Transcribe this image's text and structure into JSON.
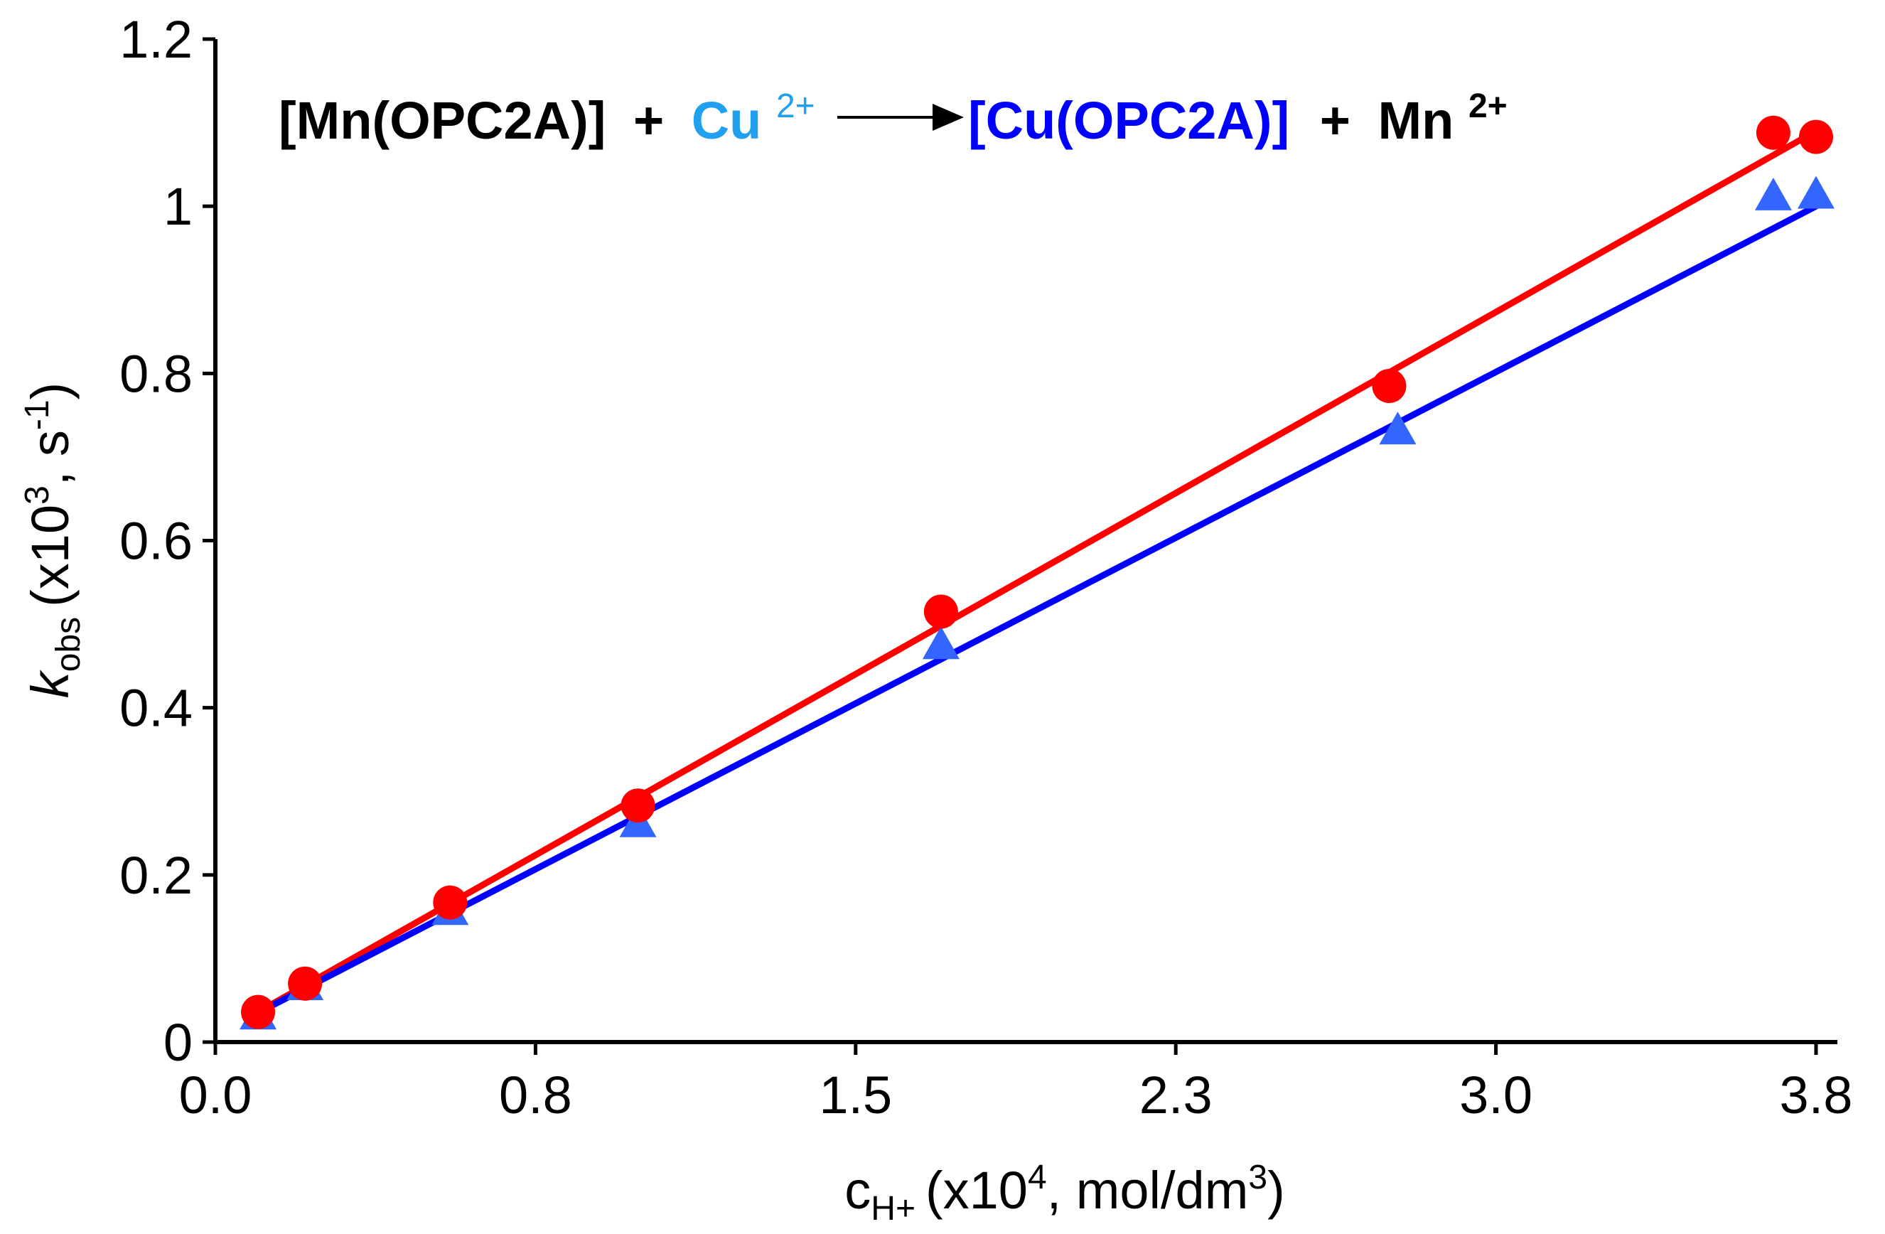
{
  "chart_data": {
    "type": "scatter",
    "title": "",
    "equation": {
      "reactant": "[Mn(OPC2A)]",
      "plus_1": "+",
      "ion_in": "Cu",
      "ion_in_charge": "2+",
      "product": "[Cu(OPC2A)]",
      "plus_2": "+",
      "ion_out": "Mn",
      "ion_out_charge": "2+"
    },
    "xlabel": {
      "symbol": "c",
      "subscript": "H+",
      "text_a": "(x10",
      "power": "4",
      "text_b": ", mol/dm",
      "unit_power": "3",
      "text_c": ")"
    },
    "ylabel": {
      "symbol": "k",
      "subscript": "obs",
      "text_a": "(x10",
      "power": "3",
      "text_b": ", s",
      "unit_power": "-1",
      "text_c": ")"
    },
    "xlim": [
      0.0,
      3.8
    ],
    "ylim": [
      0,
      1.2
    ],
    "x_ticks": [
      0.0,
      0.75,
      1.5,
      2.25,
      3.0,
      3.75
    ],
    "x_tick_labels": [
      "0.0",
      "0.8",
      "1.5",
      "2.3",
      "3.0",
      "3.8"
    ],
    "y_ticks": [
      0,
      0.2,
      0.4,
      0.6,
      0.8,
      1.0,
      1.2
    ],
    "y_tick_labels": [
      "0",
      "0.2",
      "0.4",
      "0.6",
      "0.8",
      "1",
      "1.2"
    ],
    "grid": false,
    "legend": "none",
    "series": [
      {
        "name": "circles",
        "marker": "circle",
        "color": "#ff0000",
        "line_color": "#ff0000",
        "x": [
          0.1,
          0.21,
          0.55,
          0.99,
          1.7,
          2.75,
          3.65,
          3.75
        ],
        "y": [
          0.036,
          0.07,
          0.167,
          0.283,
          0.515,
          0.785,
          1.088,
          1.083
        ],
        "fit": {
          "x": [
            0.1,
            3.75
          ],
          "y": [
            0.036,
            1.09
          ]
        }
      },
      {
        "name": "triangles",
        "marker": "triangle",
        "color": "#3366ff",
        "line_color": "#0000ff",
        "x": [
          0.1,
          0.21,
          0.55,
          0.99,
          1.7,
          2.77,
          3.65,
          3.75
        ],
        "y": [
          0.03,
          0.065,
          0.155,
          0.26,
          0.473,
          0.73,
          1.01,
          1.012
        ],
        "fit": {
          "x": [
            0.1,
            3.75
          ],
          "y": [
            0.035,
            1.0
          ]
        }
      }
    ]
  },
  "colors": {
    "black": "#000000",
    "cu_ion": "#22a0f0",
    "product": "#0000ff"
  }
}
